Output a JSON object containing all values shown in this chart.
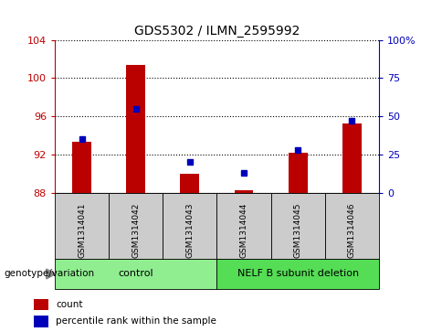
{
  "title": "GDS5302 / ILMN_2595992",
  "samples": [
    "GSM1314041",
    "GSM1314042",
    "GSM1314043",
    "GSM1314044",
    "GSM1314045",
    "GSM1314046"
  ],
  "count_values": [
    93.3,
    101.4,
    90.0,
    88.2,
    92.2,
    95.2
  ],
  "percentile_values": [
    35,
    55,
    20,
    13,
    28,
    47
  ],
  "ylim_left": [
    88,
    104
  ],
  "ylim_right": [
    0,
    100
  ],
  "yticks_left": [
    88,
    92,
    96,
    100,
    104
  ],
  "yticks_right": [
    0,
    25,
    50,
    75,
    100
  ],
  "ytick_labels_right": [
    "0",
    "25",
    "50",
    "75",
    "100%"
  ],
  "bar_color": "#BB0000",
  "dot_color": "#0000BB",
  "bar_width": 0.35,
  "grid_linestyle": "dotted",
  "sample_box_color": "#CCCCCC",
  "control_group_color": "#90EE90",
  "nelf_group_color": "#55DD55",
  "legend_items": [
    {
      "label": "count",
      "color": "#BB0000"
    },
    {
      "label": "percentile rank within the sample",
      "color": "#0000BB"
    }
  ],
  "genotype_label": "genotype/variation",
  "base_value": 88,
  "control_indices": [
    0,
    1,
    2
  ],
  "nelf_indices": [
    3,
    4,
    5
  ],
  "control_label": "control",
  "nelf_label": "NELF B subunit deletion"
}
